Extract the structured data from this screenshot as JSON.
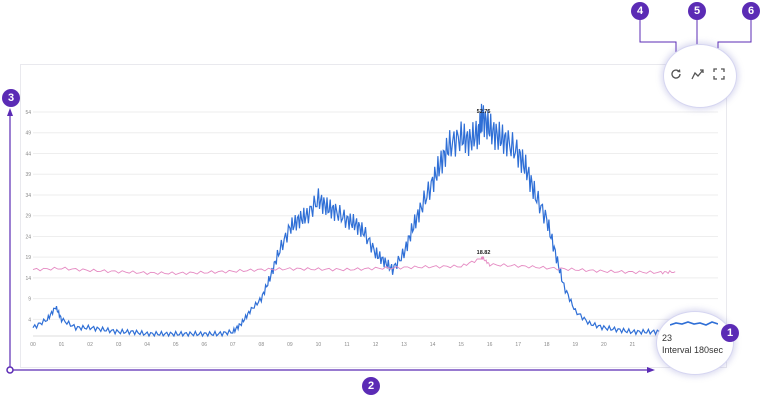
{
  "chart_data": {
    "type": "line",
    "x_tick_labels": [
      "00",
      "01",
      "02",
      "03",
      "04",
      "05",
      "06",
      "07",
      "08",
      "09",
      "10",
      "11",
      "12",
      "13",
      "14",
      "15",
      "16",
      "17",
      "18",
      "19",
      "20",
      "21",
      "22"
    ],
    "y_tick_labels": [
      "4",
      "9",
      "14",
      "19",
      "24",
      "29",
      "34",
      "39",
      "44",
      "49",
      "54"
    ],
    "ylim": [
      0,
      54
    ],
    "xlim": [
      0,
      24
    ],
    "grid": true,
    "series": [
      {
        "color": "#2f6fd6",
        "x": [
          0,
          0.5,
          0.8,
          1,
          1.5,
          2,
          2.5,
          3,
          3.5,
          4,
          4.5,
          5,
          5.5,
          6,
          6.5,
          7,
          7.3,
          7.6,
          8,
          8.3,
          8.6,
          9,
          9.3,
          9.6,
          10,
          10.3,
          10.6,
          11,
          11.3,
          11.6,
          12,
          12.3,
          12.6,
          13,
          13.3,
          13.6,
          14,
          14.3,
          14.6,
          15,
          15.3,
          15.6,
          15.75,
          16,
          16.3,
          16.6,
          17,
          17.3,
          17.6,
          18,
          18.3,
          18.6,
          19,
          19.5,
          20,
          20.5,
          21,
          21.5,
          22,
          22.5
        ],
        "y": [
          2,
          4,
          7,
          4,
          2,
          2,
          1.5,
          1,
          1,
          0.5,
          0.5,
          0.5,
          0.5,
          0.5,
          0.5,
          1,
          3,
          6,
          9,
          14,
          20,
          26,
          28,
          29,
          33,
          31,
          30,
          28,
          27,
          25,
          20,
          18,
          16,
          20,
          26,
          31,
          37,
          42,
          46,
          48,
          47,
          49,
          52.75,
          50,
          48,
          47,
          44,
          40,
          34,
          28,
          20,
          12,
          6,
          3,
          2,
          1.5,
          1,
          1,
          1,
          1
        ]
      },
      {
        "color": "#e58ac2",
        "x": [
          0,
          1,
          2,
          3,
          4,
          5,
          6,
          7,
          8,
          9,
          10,
          11,
          12,
          13,
          14,
          15,
          15.75,
          16,
          17,
          18,
          19,
          20,
          21,
          22,
          22.5
        ],
        "y": [
          16,
          16.3,
          15.8,
          15.5,
          15.2,
          15.1,
          15.3,
          15.6,
          16,
          16.2,
          16.1,
          16,
          16.3,
          16.5,
          16.7,
          16.8,
          18.82,
          17.2,
          16.9,
          16.4,
          16,
          15.6,
          15.4,
          15.3,
          15.5
        ]
      }
    ],
    "annotations": [
      {
        "x": 15.75,
        "y": 52.75,
        "text": "52.75"
      },
      {
        "x": 15.75,
        "y": 18.82,
        "text": "18.82"
      }
    ],
    "legend": {
      "value": "23",
      "interval_label": "Interval 180sec"
    }
  },
  "callouts": {
    "badge_1": "1",
    "badge_2": "2",
    "badge_3": "3",
    "badge_4": "4",
    "badge_5": "5",
    "badge_6": "6"
  },
  "colors": {
    "accent": "#5b2bb5",
    "grid": "#eeeeee",
    "axis_text": "#888888"
  },
  "icons": {
    "refresh": "refresh-icon",
    "trend": "trend-chart-icon",
    "fullscreen": "fullscreen-icon"
  }
}
